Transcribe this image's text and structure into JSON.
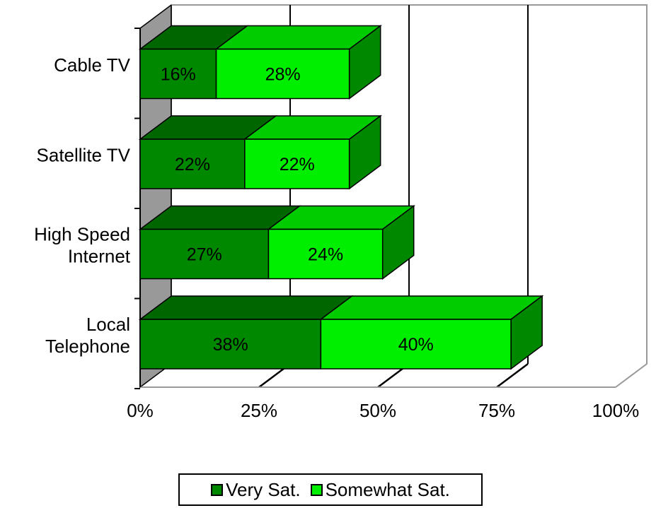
{
  "chart_data": {
    "type": "bar",
    "orientation": "horizontal",
    "stacked": true,
    "three_d": true,
    "categories": [
      [
        "Cable TV"
      ],
      [
        "Satellite TV"
      ],
      [
        "High Speed",
        "Internet"
      ],
      [
        "Local",
        "Telephone"
      ]
    ],
    "series": [
      {
        "name": "Very Sat.",
        "values": [
          16,
          22,
          27,
          38
        ],
        "color": "#008800"
      },
      {
        "name": "Somewhat Sat.",
        "values": [
          28,
          22,
          24,
          40
        ],
        "color": "#00ee00"
      }
    ],
    "data_label_suffix": "%",
    "xlim": [
      0,
      100
    ],
    "xticks": [
      0,
      25,
      50,
      75,
      100
    ],
    "xtick_labels": [
      "0%",
      "25%",
      "50%",
      "75%",
      "100%"
    ],
    "grid": true,
    "legend_position": "bottom"
  },
  "colors": {
    "very_front": "#008800",
    "very_top": "#006600",
    "somewhat_front": "#00ee00",
    "somewhat_top": "#00cc00",
    "side": "#008800",
    "wall": "#999999",
    "grid": "#000000",
    "frame": "#999999"
  }
}
